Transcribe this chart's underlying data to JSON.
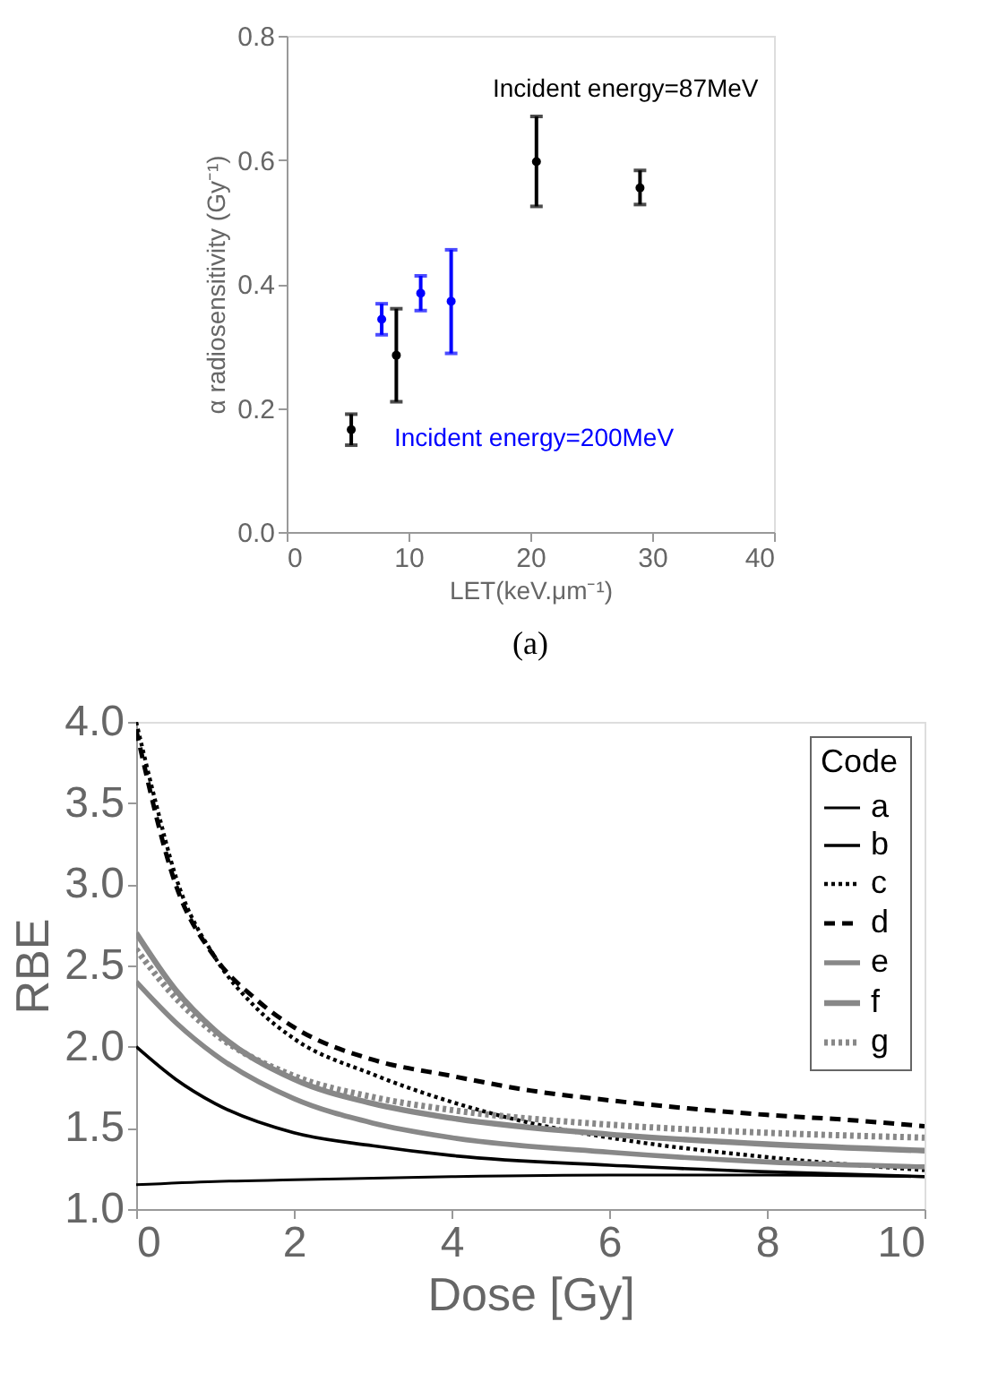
{
  "chart_data": [
    {
      "type": "scatter",
      "xlabel": "LET(keV.μm⁻¹)",
      "ylabel": "α radiosensitivity (Gy⁻¹)",
      "xlim": [
        0,
        40
      ],
      "xticks": [
        0,
        10,
        20,
        30,
        40
      ],
      "ylim": [
        0,
        0.8
      ],
      "yticks": [
        {
          "value": 0,
          "label": "0.0"
        },
        0.2,
        0.4,
        0.6,
        0.8
      ],
      "grid": false,
      "marker": "circle",
      "annotations": [
        "(a)"
      ],
      "series": [
        {
          "name": "Incident energy=87MeV",
          "color": "#000000",
          "x": [
            5.3,
            9,
            20.5,
            29
          ],
          "values": [
            0.165,
            0.285,
            0.597,
            0.555
          ],
          "errors": [
            [
              0.14,
              0.19
            ],
            [
              0.21,
              0.36
            ],
            [
              0.525,
              0.67
            ],
            [
              0.528,
              0.583
            ]
          ]
        },
        {
          "name": "Incident energy=200MeV",
          "color": "#0000ff",
          "x": [
            7.8,
            11,
            13.5
          ],
          "values": [
            0.343,
            0.385,
            0.372
          ],
          "errors": [
            [
              0.318,
              0.368
            ],
            [
              0.357,
              0.413
            ],
            [
              0.288,
              0.455
            ]
          ]
        }
      ]
    },
    {
      "type": "line",
      "xlabel": "Dose [Gy]",
      "ylabel": "RBE",
      "legend_title": "Code",
      "legend": "top right",
      "grid": false,
      "xlim": [
        0,
        10
      ],
      "xticks": [
        0,
        2,
        4,
        6,
        8,
        10
      ],
      "ylim": [
        1,
        4
      ],
      "yticks": [
        {
          "value": 1,
          "label": "1.0"
        },
        1.5,
        {
          "value": 2,
          "label": "2.0"
        },
        2.5,
        {
          "value": 3,
          "label": "3.0"
        },
        3.5,
        {
          "value": 4,
          "label": "4.0"
        }
      ],
      "series": [
        {
          "name": "a",
          "color": "#000000",
          "line_style": "solid",
          "x": [
            0,
            1,
            2,
            4,
            6,
            8,
            10
          ],
          "values": [
            1.15,
            1.17,
            1.18,
            1.2,
            1.21,
            1.21,
            1.2
          ]
        },
        {
          "name": "b",
          "color": "#000000",
          "line_style": "solid",
          "x": [
            0,
            0.5,
            1,
            2,
            3,
            4,
            6,
            8,
            10
          ],
          "values": [
            2.0,
            1.8,
            1.65,
            1.47,
            1.39,
            1.33,
            1.27,
            1.23,
            1.2
          ]
        },
        {
          "name": "c",
          "color": "#000000",
          "line_style": "dotted",
          "x": [
            0,
            0.25,
            0.5,
            1,
            1.5,
            2,
            3,
            4,
            5,
            6,
            8,
            10
          ],
          "values": [
            4.0,
            3.5,
            3.05,
            2.55,
            2.25,
            2.05,
            1.83,
            1.66,
            1.53,
            1.44,
            1.32,
            1.24
          ]
        },
        {
          "name": "d",
          "color": "#000000",
          "line_style": "dashed",
          "x": [
            0,
            0.5,
            1,
            1.5,
            2,
            3,
            4,
            5,
            6,
            7,
            8,
            9,
            10
          ],
          "values": [
            3.95,
            3.0,
            2.55,
            2.3,
            2.12,
            1.92,
            1.82,
            1.73,
            1.67,
            1.62,
            1.58,
            1.55,
            1.51
          ]
        },
        {
          "name": "e",
          "color": "#888888",
          "line_style": "solid",
          "x": [
            0,
            0.5,
            1,
            2,
            3,
            4,
            6,
            8,
            10
          ],
          "values": [
            2.4,
            2.15,
            1.95,
            1.68,
            1.53,
            1.44,
            1.35,
            1.29,
            1.26
          ]
        },
        {
          "name": "f",
          "color": "#888888",
          "line_style": "solid",
          "x": [
            0,
            0.5,
            1,
            2,
            3,
            4,
            6,
            8,
            10
          ],
          "values": [
            2.7,
            2.35,
            2.1,
            1.8,
            1.65,
            1.56,
            1.46,
            1.4,
            1.36
          ]
        },
        {
          "name": "g",
          "color": "#888888",
          "line_style": "dotted",
          "x": [
            0,
            0.5,
            1,
            2,
            3,
            4,
            6,
            8,
            10
          ],
          "values": [
            2.6,
            2.3,
            2.08,
            1.82,
            1.69,
            1.61,
            1.52,
            1.47,
            1.44
          ]
        }
      ]
    }
  ]
}
